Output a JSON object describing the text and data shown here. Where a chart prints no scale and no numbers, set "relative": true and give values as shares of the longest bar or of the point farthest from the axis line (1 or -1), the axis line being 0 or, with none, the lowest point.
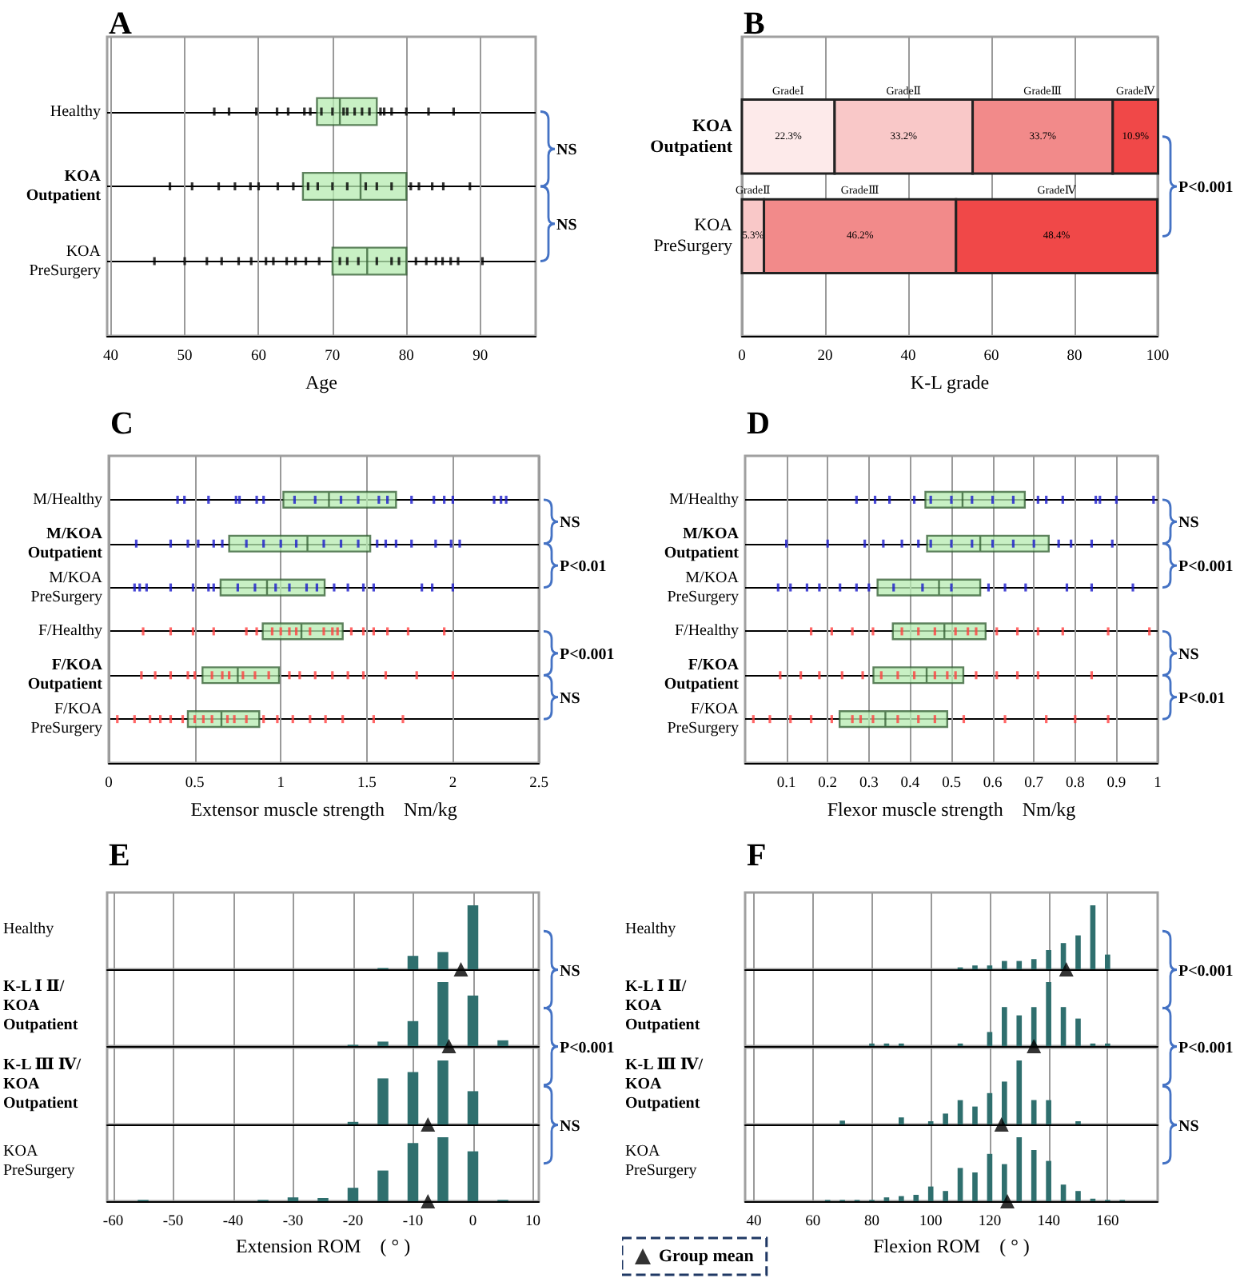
{
  "chart_data": [
    {
      "type": "box",
      "title": "A",
      "xlabel": "Age",
      "orientation": "horizontal",
      "categories": [
        "Healthy",
        "KOA\nOutpatient",
        "KOA\nPreSurgery"
      ],
      "xlim": [
        39.5,
        97.5
      ],
      "xticks": [
        40,
        50,
        60,
        70,
        80,
        90
      ],
      "grid": true,
      "annotations": [
        "NS",
        "NS"
      ],
      "series": [
        {
          "type": "scatter",
          "color": "#000000",
          "x": [
            "Healthy",
            "Healthy",
            "Healthy",
            "Healthy",
            "Healthy",
            "Healthy",
            "Healthy",
            "Healthy",
            "Healthy",
            "Healthy",
            "Healthy",
            "Healthy",
            "Healthy",
            "Healthy",
            "Healthy",
            "Healthy",
            "Healthy",
            "Healthy",
            "Healthy",
            "Healthy"
          ],
          "values": [
            54,
            56,
            59.7,
            62.5,
            64,
            66.2,
            67,
            68.5,
            70,
            71.5,
            72,
            73,
            74,
            75,
            76.5,
            77,
            78,
            80,
            83,
            86.4
          ]
        },
        {
          "type": "scatter",
          "color": "#000000",
          "x": [
            "KOA\nOutpatient",
            "KOA\nOutpatient",
            "KOA\nOutpatient",
            "KOA\nOutpatient",
            "KOA\nOutpatient",
            "KOA\nOutpatient",
            "KOA\nOutpatient",
            "KOA\nOutpatient",
            "KOA\nOutpatient",
            "KOA\nOutpatient",
            "KOA\nOutpatient",
            "KOA\nOutpatient",
            "KOA\nOutpatient",
            "KOA\nOutpatient",
            "KOA\nOutpatient",
            "KOA\nOutpatient",
            "KOA\nOutpatient",
            "KOA\nOutpatient",
            "KOA\nOutpatient",
            "KOA\nOutpatient"
          ],
          "values": [
            48,
            51,
            54.6,
            56.8,
            58.9,
            60,
            62.6,
            64.7,
            66.7,
            68,
            70,
            72,
            74.5,
            76,
            78,
            80.6,
            81.7,
            83.5,
            85,
            88.6
          ]
        },
        {
          "type": "scatter",
          "color": "#000000",
          "x": [
            "KOA\nPreSurgery",
            "KOA\nPreSurgery",
            "KOA\nPreSurgery",
            "KOA\nPreSurgery",
            "KOA\nPreSurgery",
            "KOA\nPreSurgery",
            "KOA\nPreSurgery",
            "KOA\nPreSurgery",
            "KOA\nPreSurgery",
            "KOA\nPreSurgery",
            "KOA\nPreSurgery",
            "KOA\nPreSurgery",
            "KOA\nPreSurgery",
            "KOA\nPreSurgery",
            "KOA\nPreSurgery",
            "KOA\nPreSurgery",
            "KOA\nPreSurgery",
            "KOA\nPreSurgery",
            "KOA\nPreSurgery",
            "KOA\nPreSurgery",
            "KOA\nPreSurgery",
            "KOA\nPreSurgery",
            "KOA\nPreSurgery",
            "KOA\nPreSurgery",
            "KOA\nPreSurgery"
          ],
          "values": [
            45.9,
            50,
            53,
            55,
            57.3,
            59,
            61,
            62,
            63.8,
            65,
            66.4,
            68.2,
            71,
            72,
            73.5,
            76,
            78,
            79,
            81.3,
            82.7,
            84,
            84.9,
            86,
            87,
            90.3
          ]
        },
        {
          "type": "box",
          "color": "#b6ebb0",
          "boxes": [
            {
              "low": 67.9,
              "q1": 67.9,
              "median": 71,
              "q3": 76,
              "high": 76
            },
            {
              "low": 66,
              "q1": 66,
              "median": 73.8,
              "q3": 80,
              "high": 80
            },
            {
              "low": 70,
              "q1": 70,
              "median": 74.7,
              "q3": 80,
              "high": 80
            }
          ]
        }
      ]
    },
    {
      "type": "bar",
      "title": "B",
      "xlabel": "K-L grade",
      "orientation": "horizontal",
      "stacked": true,
      "categories": [
        "KOA\nOutpatient",
        "KOA\nPreSurgery"
      ],
      "xlim": [
        0,
        100
      ],
      "xticks": [
        0,
        20,
        40,
        60,
        80,
        100
      ],
      "grid": "x",
      "annotations": [
        "P<0.001"
      ],
      "series": [
        {
          "name": "GradeⅠ",
          "color": "#fdeaea",
          "values": [
            22.3,
            null
          ],
          "value_labels": [
            "22.3%",
            null
          ]
        },
        {
          "name": "GradeⅡ",
          "color": "#f9c8c8",
          "values": [
            33.2,
            5.3
          ],
          "value_labels": [
            "33.2%",
            "5.3%"
          ]
        },
        {
          "name": "GradeⅢ",
          "color": "#f28a8a",
          "values": [
            33.7,
            46.2
          ],
          "value_labels": [
            "33.7%",
            "46.2%"
          ]
        },
        {
          "name": "GradeⅣ",
          "color": "#f04848",
          "values": [
            10.9,
            48.4
          ],
          "value_labels": [
            "10.9%",
            "48.4%"
          ]
        }
      ]
    },
    {
      "type": "box",
      "title": "C",
      "xlabel": "Extensor muscle strength    Nm/kg",
      "orientation": "horizontal",
      "categories": [
        "M/Healthy",
        "M/KOA\nOutpatient",
        "M/KOA\nPreSurgery",
        "F/Healthy",
        "F/KOA\nOutpatient",
        "F/KOA\nPreSurgery"
      ],
      "xlim": [
        0,
        2.5
      ],
      "xticks": [
        0,
        0.5,
        1,
        1.5,
        2,
        2.5
      ],
      "grid": true,
      "annotations": [
        "NS",
        "P<0.01",
        "P<0.001",
        "NS"
      ],
      "series": [
        {
          "type": "scatter",
          "color": "#1a1acc",
          "x": [
            "M/Healthy",
            "M/Healthy",
            "M/Healthy",
            "M/Healthy",
            "M/Healthy",
            "M/Healthy",
            "M/Healthy",
            "M/Healthy",
            "M/Healthy",
            "M/Healthy",
            "M/Healthy",
            "M/Healthy",
            "M/Healthy",
            "M/Healthy",
            "M/Healthy",
            "M/Healthy",
            "M/Healthy",
            "M/Healthy",
            "M/Healthy",
            "M/Healthy"
          ],
          "values": [
            0.4,
            0.44,
            0.58,
            0.74,
            0.76,
            0.86,
            0.9,
            1.08,
            1.2,
            1.35,
            1.45,
            1.57,
            1.62,
            1.76,
            1.89,
            1.95,
            2.0,
            2.24,
            2.28,
            2.31
          ]
        },
        {
          "type": "scatter",
          "color": "#1a1acc",
          "x": [
            "M/KOA\nOutpatient",
            "M/KOA\nOutpatient",
            "M/KOA\nOutpatient",
            "M/KOA\nOutpatient",
            "M/KOA\nOutpatient",
            "M/KOA\nOutpatient",
            "M/KOA\nOutpatient",
            "M/KOA\nOutpatient",
            "M/KOA\nOutpatient",
            "M/KOA\nOutpatient",
            "M/KOA\nOutpatient",
            "M/KOA\nOutpatient",
            "M/KOA\nOutpatient",
            "M/KOA\nOutpatient",
            "M/KOA\nOutpatient",
            "M/KOA\nOutpatient",
            "M/KOA\nOutpatient",
            "M/KOA\nOutpatient",
            "M/KOA\nOutpatient",
            "M/KOA\nOutpatient"
          ],
          "values": [
            0.16,
            0.36,
            0.46,
            0.52,
            0.61,
            0.66,
            0.8,
            0.9,
            1.0,
            1.09,
            1.25,
            1.35,
            1.45,
            1.56,
            1.61,
            1.67,
            1.76,
            1.9,
            1.99,
            2.04
          ]
        },
        {
          "type": "scatter",
          "color": "#1a1acc",
          "x": [
            "M/KOA\nPreSurgery",
            "M/KOA\nPreSurgery",
            "M/KOA\nPreSurgery",
            "M/KOA\nPreSurgery",
            "M/KOA\nPreSurgery",
            "M/KOA\nPreSurgery",
            "M/KOA\nPreSurgery",
            "M/KOA\nPreSurgery",
            "M/KOA\nPreSurgery",
            "M/KOA\nPreSurgery",
            "M/KOA\nPreSurgery",
            "M/KOA\nPreSurgery",
            "M/KOA\nPreSurgery",
            "M/KOA\nPreSurgery",
            "M/KOA\nPreSurgery",
            "M/KOA\nPreSurgery",
            "M/KOA\nPreSurgery",
            "M/KOA\nPreSurgery",
            "M/KOA\nPreSurgery",
            "M/KOA\nPreSurgery"
          ],
          "values": [
            0.15,
            0.18,
            0.22,
            0.36,
            0.49,
            0.58,
            0.61,
            0.75,
            0.85,
            0.97,
            1.05,
            1.15,
            1.21,
            1.31,
            1.39,
            1.48,
            1.54,
            1.82,
            1.88,
            2.0
          ]
        },
        {
          "type": "scatter",
          "color": "#ff4040",
          "x": [
            "F/Healthy",
            "F/Healthy",
            "F/Healthy",
            "F/Healthy",
            "F/Healthy",
            "F/Healthy",
            "F/Healthy",
            "F/Healthy",
            "F/Healthy",
            "F/Healthy",
            "F/Healthy",
            "F/Healthy",
            "F/Healthy",
            "F/Healthy",
            "F/Healthy",
            "F/Healthy",
            "F/Healthy",
            "F/Healthy",
            "F/Healthy",
            "F/Healthy"
          ],
          "values": [
            0.2,
            0.36,
            0.49,
            0.61,
            0.8,
            0.86,
            0.95,
            1.0,
            1.05,
            1.09,
            1.17,
            1.25,
            1.3,
            1.33,
            1.41,
            1.48,
            1.54,
            1.62,
            1.74,
            1.95
          ]
        },
        {
          "type": "scatter",
          "color": "#ff4040",
          "x": [
            "F/KOA\nOutpatient",
            "F/KOA\nOutpatient",
            "F/KOA\nOutpatient",
            "F/KOA\nOutpatient",
            "F/KOA\nOutpatient",
            "F/KOA\nOutpatient",
            "F/KOA\nOutpatient",
            "F/KOA\nOutpatient",
            "F/KOA\nOutpatient",
            "F/KOA\nOutpatient",
            "F/KOA\nOutpatient",
            "F/KOA\nOutpatient",
            "F/KOA\nOutpatient",
            "F/KOA\nOutpatient",
            "F/KOA\nOutpatient",
            "F/KOA\nOutpatient",
            "F/KOA\nOutpatient",
            "F/KOA\nOutpatient",
            "F/KOA\nOutpatient",
            "F/KOA\nOutpatient"
          ],
          "values": [
            0.19,
            0.27,
            0.36,
            0.46,
            0.5,
            0.6,
            0.66,
            0.7,
            0.78,
            0.85,
            0.93,
            1.05,
            1.11,
            1.2,
            1.3,
            1.39,
            1.48,
            1.61,
            1.79,
            2.0
          ]
        },
        {
          "type": "scatter",
          "color": "#ff4040",
          "x": [
            "F/KOA\nPreSurgery",
            "F/KOA\nPreSurgery",
            "F/KOA\nPreSurgery",
            "F/KOA\nPreSurgery",
            "F/KOA\nPreSurgery",
            "F/KOA\nPreSurgery",
            "F/KOA\nPreSurgery",
            "F/KOA\nPreSurgery",
            "F/KOA\nPreSurgery",
            "F/KOA\nPreSurgery",
            "F/KOA\nPreSurgery",
            "F/KOA\nPreSurgery",
            "F/KOA\nPreSurgery",
            "F/KOA\nPreSurgery",
            "F/KOA\nPreSurgery",
            "F/KOA\nPreSurgery",
            "F/KOA\nPreSurgery",
            "F/KOA\nPreSurgery",
            "F/KOA\nPreSurgery",
            "F/KOA\nPreSurgery"
          ],
          "values": [
            0.05,
            0.15,
            0.24,
            0.3,
            0.36,
            0.43,
            0.5,
            0.55,
            0.6,
            0.69,
            0.73,
            0.8,
            0.9,
            0.98,
            1.07,
            1.17,
            1.26,
            1.36,
            1.54,
            1.71
          ]
        },
        {
          "type": "box",
          "color": "#b6ebb0",
          "boxes": [
            {
              "low": 1.015,
              "q1": 1.015,
              "median": 1.28,
              "q3": 1.67,
              "high": 1.67
            },
            {
              "low": 0.7,
              "q1": 0.7,
              "median": 1.155,
              "q3": 1.52,
              "high": 1.52
            },
            {
              "low": 0.65,
              "q1": 0.65,
              "median": 0.92,
              "q3": 1.255,
              "high": 1.255
            },
            {
              "low": 0.895,
              "q1": 0.895,
              "median": 1.12,
              "q3": 1.36,
              "high": 1.36
            },
            {
              "low": 0.545,
              "q1": 0.545,
              "median": 0.75,
              "q3": 0.99,
              "high": 0.99
            },
            {
              "low": 0.46,
              "q1": 0.46,
              "median": 0.655,
              "q3": 0.875,
              "high": 0.875
            }
          ]
        }
      ]
    },
    {
      "type": "box",
      "title": "D",
      "xlabel": "Flexor muscle strength    Nm/kg",
      "orientation": "horizontal",
      "categories": [
        "M/Healthy",
        "M/KOA\nOutpatient",
        "M/KOA\nPreSurgery",
        "F/Healthy",
        "F/KOA\nOutpatient",
        "F/KOA\nPreSurgery"
      ],
      "xlim": [
        0,
        1
      ],
      "xticks": [
        0.1,
        0.2,
        0.3,
        0.4,
        0.5,
        0.6,
        0.7,
        0.8,
        0.9,
        1
      ],
      "grid": true,
      "annotations": [
        "NS",
        "P<0.001",
        "NS",
        "P<0.01"
      ],
      "series": [
        {
          "type": "scatter",
          "color": "#1a1acc",
          "x": [
            "M/Healthy",
            "M/Healthy",
            "M/Healthy",
            "M/Healthy",
            "M/Healthy",
            "M/Healthy",
            "M/Healthy",
            "M/Healthy",
            "M/Healthy",
            "M/Healthy",
            "M/Healthy",
            "M/Healthy",
            "M/Healthy",
            "M/Healthy",
            "M/Healthy",
            "M/Healthy"
          ],
          "values": [
            0.27,
            0.315,
            0.35,
            0.41,
            0.45,
            0.5,
            0.55,
            0.6,
            0.65,
            0.71,
            0.73,
            0.77,
            0.85,
            0.86,
            0.9,
            0.99
          ]
        },
        {
          "type": "scatter",
          "color": "#1a1acc",
          "x": [
            "M/KOA\nOutpatient",
            "M/KOA\nOutpatient",
            "M/KOA\nOutpatient",
            "M/KOA\nOutpatient",
            "M/KOA\nOutpatient",
            "M/KOA\nOutpatient",
            "M/KOA\nOutpatient",
            "M/KOA\nOutpatient",
            "M/KOA\nOutpatient",
            "M/KOA\nOutpatient",
            "M/KOA\nOutpatient",
            "M/KOA\nOutpatient",
            "M/KOA\nOutpatient",
            "M/KOA\nOutpatient",
            "M/KOA\nOutpatient",
            "M/KOA\nOutpatient"
          ],
          "values": [
            0.1,
            0.2,
            0.29,
            0.335,
            0.38,
            0.42,
            0.45,
            0.5,
            0.55,
            0.6,
            0.65,
            0.7,
            0.76,
            0.79,
            0.84,
            0.89
          ]
        },
        {
          "type": "scatter",
          "color": "#1a1acc",
          "x": [
            "M/KOA\nPreSurgery",
            "M/KOA\nPreSurgery",
            "M/KOA\nPreSurgery",
            "M/KOA\nPreSurgery",
            "M/KOA\nPreSurgery",
            "M/KOA\nPreSurgery",
            "M/KOA\nPreSurgery",
            "M/KOA\nPreSurgery",
            "M/KOA\nPreSurgery",
            "M/KOA\nPreSurgery",
            "M/KOA\nPreSurgery",
            "M/KOA\nPreSurgery",
            "M/KOA\nPreSurgery",
            "M/KOA\nPreSurgery",
            "M/KOA\nPreSurgery",
            "M/KOA\nPreSurgery"
          ],
          "values": [
            0.08,
            0.11,
            0.15,
            0.18,
            0.23,
            0.27,
            0.3,
            0.36,
            0.43,
            0.5,
            0.59,
            0.63,
            0.68,
            0.78,
            0.84,
            0.94
          ]
        },
        {
          "type": "scatter",
          "color": "#ff4040",
          "x": [
            "F/Healthy",
            "F/Healthy",
            "F/Healthy",
            "F/Healthy",
            "F/Healthy",
            "F/Healthy",
            "F/Healthy",
            "F/Healthy",
            "F/Healthy",
            "F/Healthy",
            "F/Healthy",
            "F/Healthy",
            "F/Healthy",
            "F/Healthy",
            "F/Healthy",
            "F/Healthy"
          ],
          "values": [
            0.16,
            0.21,
            0.26,
            0.31,
            0.38,
            0.42,
            0.46,
            0.51,
            0.54,
            0.56,
            0.61,
            0.66,
            0.71,
            0.77,
            0.88,
            0.98
          ]
        },
        {
          "type": "scatter",
          "color": "#ff4040",
          "x": [
            "F/KOA\nOutpatient",
            "F/KOA\nOutpatient",
            "F/KOA\nOutpatient",
            "F/KOA\nOutpatient",
            "F/KOA\nOutpatient",
            "F/KOA\nOutpatient",
            "F/KOA\nOutpatient",
            "F/KOA\nOutpatient",
            "F/KOA\nOutpatient",
            "F/KOA\nOutpatient",
            "F/KOA\nOutpatient",
            "F/KOA\nOutpatient",
            "F/KOA\nOutpatient",
            "F/KOA\nOutpatient",
            "F/KOA\nOutpatient",
            "F/KOA\nOutpatient"
          ],
          "values": [
            0.085,
            0.135,
            0.18,
            0.235,
            0.285,
            0.33,
            0.37,
            0.41,
            0.46,
            0.49,
            0.51,
            0.56,
            0.61,
            0.66,
            0.71,
            0.84
          ]
        },
        {
          "type": "scatter",
          "color": "#ff4040",
          "x": [
            "F/KOA\nPreSurgery",
            "F/KOA\nPreSurgery",
            "F/KOA\nPreSurgery",
            "F/KOA\nPreSurgery",
            "F/KOA\nPreSurgery",
            "F/KOA\nPreSurgery",
            "F/KOA\nPreSurgery",
            "F/KOA\nPreSurgery",
            "F/KOA\nPreSurgery",
            "F/KOA\nPreSurgery",
            "F/KOA\nPreSurgery",
            "F/KOA\nPreSurgery",
            "F/KOA\nPreSurgery",
            "F/KOA\nPreSurgery",
            "F/KOA\nPreSurgery",
            "F/KOA\nPreSurgery"
          ],
          "values": [
            0.02,
            0.06,
            0.11,
            0.16,
            0.21,
            0.26,
            0.28,
            0.31,
            0.37,
            0.42,
            0.46,
            0.53,
            0.63,
            0.73,
            0.8,
            0.88
          ]
        },
        {
          "type": "box",
          "color": "#b6ebb0",
          "boxes": [
            {
              "low": 0.437,
              "q1": 0.437,
              "median": 0.527,
              "q3": 0.678,
              "high": 0.678
            },
            {
              "low": 0.441,
              "q1": 0.441,
              "median": 0.57,
              "q3": 0.736,
              "high": 0.736
            },
            {
              "low": 0.321,
              "q1": 0.321,
              "median": 0.47,
              "q3": 0.57,
              "high": 0.57
            },
            {
              "low": 0.358,
              "q1": 0.358,
              "median": 0.483,
              "q3": 0.583,
              "high": 0.583
            },
            {
              "low": 0.311,
              "q1": 0.311,
              "median": 0.44,
              "q3": 0.529,
              "high": 0.529
            },
            {
              "low": 0.229,
              "q1": 0.229,
              "median": 0.34,
              "q3": 0.49,
              "high": 0.49
            }
          ]
        }
      ]
    },
    {
      "type": "bar",
      "title": "E",
      "ylabel": "Healthy",
      "relative": true,
      "xlim": [
        -61,
        11
      ],
      "xticks": [
        -60,
        -50,
        -40,
        -30,
        -20,
        -10,
        0,
        10
      ],
      "tick_labels": false,
      "grid": "x",
      "annotations": [
        "NS"
      ],
      "series": [
        {
          "color": "#2f6f6e",
          "x": [
            -15,
            -10,
            -5,
            0
          ],
          "values": [
            0.02,
            0.21,
            0.27,
            1
          ]
        },
        {
          "type": "scatter",
          "color": "#000000",
          "marker": "triangle",
          "x": [
            -2
          ],
          "values": [
            0
          ]
        }
      ]
    },
    {
      "type": "bar",
      "ylabel": "K-L Ⅰ Ⅱ/\nKOA\nOutpatient",
      "relative": true,
      "xlim": [
        -61,
        11
      ],
      "xticks": [
        -60,
        -50,
        -40,
        -30,
        -20,
        -10,
        0,
        10
      ],
      "tick_labels": false,
      "grid": "x",
      "annotations": [
        "P<0.001"
      ],
      "series": [
        {
          "color": "#2f6f6e",
          "x": [
            -20,
            -15,
            -10,
            -5,
            0,
            5
          ],
          "values": [
            0.02,
            0.07,
            0.39,
            1,
            0.79,
            0.09
          ]
        },
        {
          "type": "scatter",
          "color": "#000000",
          "marker": "triangle",
          "x": [
            -4
          ],
          "values": [
            0
          ]
        }
      ]
    },
    {
      "type": "bar",
      "ylabel": "K-L Ⅲ Ⅳ/\nKOA\nOutpatient",
      "relative": true,
      "xlim": [
        -61,
        11
      ],
      "xticks": [
        -60,
        -50,
        -40,
        -30,
        -20,
        -10,
        0,
        10
      ],
      "tick_labels": false,
      "grid": "x",
      "annotations": [
        "NS"
      ],
      "series": [
        {
          "color": "#2f6f6e",
          "x": [
            -20,
            -15,
            -10,
            -5,
            0
          ],
          "values": [
            0.04,
            0.72,
            0.82,
            1,
            0.52
          ]
        },
        {
          "type": "scatter",
          "color": "#000000",
          "marker": "triangle",
          "x": [
            -7.5
          ],
          "values": [
            0
          ]
        }
      ]
    },
    {
      "type": "bar",
      "ylabel": "KOA\nPreSurgery",
      "xlabel": "Extension ROM　( ° )",
      "relative": true,
      "xlim": [
        -61,
        11
      ],
      "xticks": [
        -60,
        -50,
        -40,
        -30,
        -20,
        -10,
        0,
        10
      ],
      "tick_labels": "x",
      "grid": "x",
      "series": [
        {
          "color": "#2f6f6e",
          "x": [
            -55,
            -35,
            -30,
            -25,
            -20,
            -15,
            -10,
            -5,
            0,
            5
          ],
          "values": [
            0.02,
            0.02,
            0.06,
            0.05,
            0.21,
            0.48,
            0.91,
            1,
            0.78,
            0.02
          ]
        },
        {
          "type": "scatter",
          "color": "#000000",
          "marker": "triangle",
          "x": [
            -7.5
          ],
          "values": [
            0
          ]
        }
      ]
    },
    {
      "type": "bar",
      "title": "F",
      "ylabel": "Healthy",
      "relative": true,
      "xlim": [
        37,
        177
      ],
      "xticks": [
        40,
        60,
        80,
        100,
        120,
        140,
        160
      ],
      "tick_labels": false,
      "grid": "x",
      "annotations": [
        "P<0.001"
      ],
      "series": [
        {
          "color": "#2f6f6e",
          "x": [
            110,
            115,
            120,
            125,
            130,
            135,
            140,
            145,
            150,
            155,
            160
          ],
          "values": [
            0.03,
            0.06,
            0.06,
            0.13,
            0.13,
            0.16,
            0.3,
            0.41,
            0.53,
            1,
            0.23
          ]
        },
        {
          "type": "scatter",
          "color": "#000000",
          "marker": "triangle",
          "x": [
            146
          ],
          "values": [
            0
          ]
        }
      ]
    },
    {
      "type": "bar",
      "ylabel": "K-L Ⅰ Ⅱ/\nKOA\nOutpatient",
      "relative": true,
      "xlim": [
        37,
        177
      ],
      "xticks": [
        40,
        60,
        80,
        100,
        120,
        140,
        160
      ],
      "tick_labels": false,
      "grid": "x",
      "annotations": [
        "P<0.001"
      ],
      "series": [
        {
          "color": "#2f6f6e",
          "x": [
            80,
            85,
            90,
            110,
            120,
            125,
            130,
            135,
            140,
            145,
            150,
            155,
            160
          ],
          "values": [
            0.04,
            0.04,
            0.04,
            0.04,
            0.22,
            0.61,
            0.48,
            0.61,
            1,
            0.61,
            0.43,
            0.04,
            0.04
          ]
        },
        {
          "type": "scatter",
          "color": "#000000",
          "marker": "triangle",
          "x": [
            135
          ],
          "values": [
            0
          ]
        }
      ]
    },
    {
      "type": "bar",
      "ylabel": "K-L Ⅲ Ⅳ/\nKOA\nOutpatient",
      "relative": true,
      "xlim": [
        37,
        177
      ],
      "xticks": [
        40,
        60,
        80,
        100,
        120,
        140,
        160
      ],
      "tick_labels": false,
      "grid": "x",
      "annotations": [
        "NS"
      ],
      "series": [
        {
          "color": "#2f6f6e",
          "x": [
            70,
            90,
            100,
            105,
            110,
            115,
            120,
            125,
            130,
            135,
            140,
            150
          ],
          "values": [
            0.06,
            0.11,
            0.05,
            0.17,
            0.38,
            0.28,
            0.49,
            0.67,
            1,
            0.38,
            0.38,
            0.05
          ]
        },
        {
          "type": "scatter",
          "color": "#000000",
          "marker": "triangle",
          "x": [
            124
          ],
          "values": [
            0
          ]
        }
      ]
    },
    {
      "type": "bar",
      "ylabel": "KOA\nPreSurgery",
      "xlabel": "Flexion ROM　( ° )",
      "relative": true,
      "xlim": [
        37,
        177
      ],
      "xticks": [
        40,
        60,
        80,
        100,
        120,
        140,
        160
      ],
      "tick_labels": "x",
      "grid": "x",
      "legend": "bottom left",
      "series": [
        {
          "color": "#2f6f6e",
          "x": [
            65,
            70,
            75,
            80,
            85,
            90,
            95,
            100,
            105,
            110,
            115,
            120,
            125,
            130,
            135,
            140,
            145,
            150,
            155,
            160,
            165
          ],
          "values": [
            0.02,
            0.02,
            0.02,
            0.02,
            0.06,
            0.08,
            0.1,
            0.23,
            0.16,
            0.52,
            0.45,
            0.74,
            0.58,
            1,
            0.8,
            0.63,
            0.26,
            0.16,
            0.04,
            0.02,
            0.02
          ]
        },
        {
          "type": "scatter",
          "name": "Group mean",
          "color": "#000000",
          "marker": "triangle",
          "x": [
            126
          ],
          "values": [
            0
          ]
        }
      ]
    }
  ]
}
